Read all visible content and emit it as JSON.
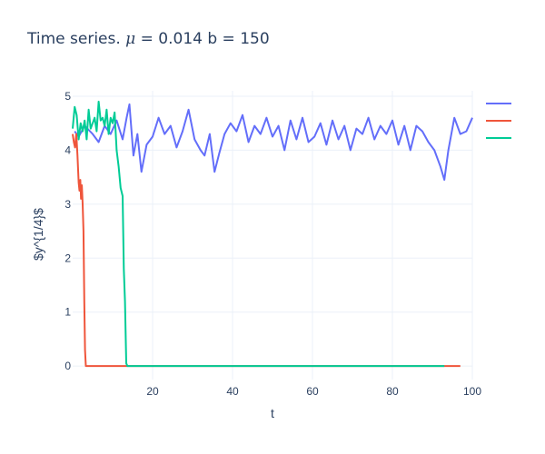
{
  "title": {
    "prefix": "Time series. ",
    "symbol": "μ",
    "suffix": " = 0.014 b = 150"
  },
  "chart_data": {
    "type": "line",
    "xlabel": "t",
    "ylabel": "$y^{1/4}$",
    "xlim": [
      0,
      100
    ],
    "ylim": [
      -0.25,
      5.1
    ],
    "xticks": [
      20,
      40,
      60,
      80,
      100
    ],
    "yticks": [
      0,
      1,
      2,
      3,
      4,
      5
    ],
    "grid": true,
    "legend_position": "top-right",
    "series": [
      {
        "color": "#636efa",
        "x": [
          0.5,
          1.5,
          3,
          5,
          6.5,
          8,
          9.5,
          11,
          12.5,
          13.5,
          14.2,
          15.2,
          16.2,
          17.2,
          18.5,
          20,
          21.5,
          23,
          24.5,
          26,
          27.5,
          29,
          30.5,
          32,
          33,
          34.3,
          35.5,
          36.7,
          38,
          39.5,
          41,
          42.5,
          44,
          45.5,
          47,
          48.5,
          50,
          51.5,
          53,
          54.5,
          56,
          57.5,
          59,
          60.5,
          62,
          63.5,
          65,
          66.5,
          68,
          69.5,
          71,
          72.5,
          74,
          75.5,
          77,
          78.5,
          80,
          81.5,
          83,
          84.5,
          86,
          87.5,
          89,
          90.5,
          92,
          93,
          94,
          95.5,
          97,
          98.5,
          100
        ],
        "y": [
          4.35,
          4.25,
          4.45,
          4.3,
          4.15,
          4.45,
          4.3,
          4.55,
          4.2,
          4.6,
          4.85,
          3.9,
          4.3,
          3.6,
          4.1,
          4.25,
          4.6,
          4.3,
          4.45,
          4.05,
          4.35,
          4.75,
          4.2,
          4.0,
          3.9,
          4.3,
          3.6,
          3.95,
          4.3,
          4.5,
          4.35,
          4.65,
          4.15,
          4.45,
          4.3,
          4.6,
          4.25,
          4.45,
          4.0,
          4.55,
          4.2,
          4.6,
          4.15,
          4.25,
          4.5,
          4.1,
          4.55,
          4.2,
          4.45,
          4.0,
          4.4,
          4.3,
          4.6,
          4.2,
          4.45,
          4.3,
          4.55,
          4.1,
          4.45,
          4.0,
          4.45,
          4.35,
          4.15,
          4.0,
          3.7,
          3.45,
          4.0,
          4.6,
          4.3,
          4.35,
          4.6
        ]
      },
      {
        "color": "#ef553b",
        "x": [
          0,
          0.3,
          0.6,
          0.9,
          1.2,
          1.5,
          1.7,
          1.9,
          2.1,
          2.3,
          2.5,
          2.7,
          2.9,
          3.1,
          3.3,
          97
        ],
        "y": [
          4.3,
          4.15,
          4.05,
          4.3,
          3.9,
          3.4,
          3.25,
          3.45,
          3.1,
          3.35,
          3.0,
          2.5,
          1.2,
          0.3,
          0,
          0
        ]
      },
      {
        "color": "#00cc96",
        "x": [
          0,
          0.5,
          1,
          1.5,
          2,
          2.5,
          3,
          3.5,
          4,
          4.5,
          5,
          5.5,
          6,
          6.5,
          7,
          7.5,
          8,
          8.5,
          9,
          9.5,
          10,
          10.5,
          11,
          11.5,
          12,
          12.5,
          12.8,
          13.1,
          13.4,
          13.7,
          14,
          93
        ],
        "y": [
          4.4,
          4.8,
          4.65,
          4.2,
          4.5,
          4.35,
          4.55,
          4.2,
          4.75,
          4.4,
          4.5,
          4.6,
          4.35,
          4.9,
          4.55,
          4.6,
          4.45,
          4.75,
          4.3,
          4.6,
          4.5,
          4.7,
          4.0,
          3.7,
          3.3,
          3.15,
          1.8,
          1.2,
          0.05,
          0,
          0,
          0
        ]
      }
    ]
  }
}
